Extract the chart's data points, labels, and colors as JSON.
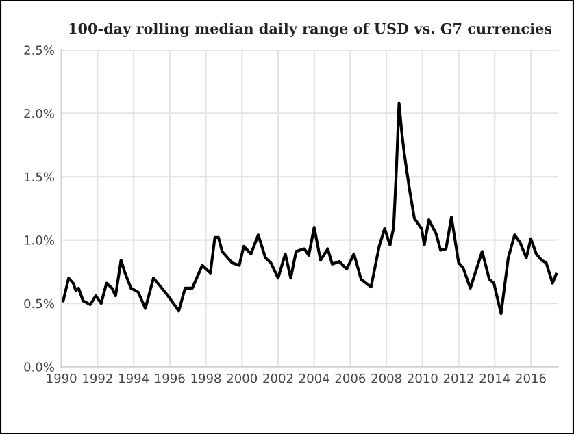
{
  "chart_data": {
    "type": "line",
    "title": "100-day rolling median daily range of USD vs. G7 currencies",
    "x": [
      1990.0,
      1990.1,
      1990.4,
      1990.65,
      1990.8,
      1990.95,
      1991.2,
      1991.6,
      1991.9,
      1992.2,
      1992.5,
      1992.8,
      1993.0,
      1993.3,
      1993.5,
      1993.85,
      1994.25,
      1994.65,
      1995.1,
      1995.45,
      1995.85,
      1996.15,
      1996.5,
      1996.85,
      1997.25,
      1997.8,
      1998.25,
      1998.5,
      1998.7,
      1998.9,
      1999.45,
      1999.85,
      2000.1,
      2000.5,
      2000.9,
      2001.3,
      2001.6,
      2002.0,
      2002.4,
      2002.7,
      2003.0,
      2003.45,
      2003.7,
      2004.0,
      2004.35,
      2004.75,
      2005.0,
      2005.4,
      2005.8,
      2006.2,
      2006.6,
      2007.15,
      2007.6,
      2007.9,
      2008.2,
      2008.4,
      2008.55,
      2008.7,
      2008.85,
      2009.0,
      2009.3,
      2009.55,
      2009.95,
      2010.1,
      2010.35,
      2010.75,
      2011.0,
      2011.3,
      2011.6,
      2012.0,
      2012.25,
      2012.65,
      2013.3,
      2013.7,
      2013.95,
      2014.35,
      2014.75,
      2015.1,
      2015.4,
      2015.75,
      2016.0,
      2016.3,
      2016.6,
      2016.85,
      2017.2,
      2017.4
    ],
    "series": [
      {
        "color": "#000000",
        "values": [
          0.53,
          0.52,
          0.7,
          0.66,
          0.6,
          0.62,
          0.52,
          0.49,
          0.56,
          0.5,
          0.66,
          0.62,
          0.56,
          0.84,
          0.75,
          0.62,
          0.59,
          0.46,
          0.7,
          0.64,
          0.57,
          0.51,
          0.44,
          0.62,
          0.62,
          0.8,
          0.74,
          1.02,
          1.02,
          0.91,
          0.82,
          0.8,
          0.95,
          0.89,
          1.04,
          0.86,
          0.82,
          0.7,
          0.89,
          0.7,
          0.91,
          0.93,
          0.88,
          1.1,
          0.84,
          0.93,
          0.81,
          0.83,
          0.77,
          0.89,
          0.69,
          0.63,
          0.95,
          1.09,
          0.96,
          1.1,
          1.55,
          2.08,
          1.85,
          1.67,
          1.38,
          1.17,
          1.09,
          0.96,
          1.16,
          1.05,
          0.92,
          0.93,
          1.18,
          0.82,
          0.78,
          0.62,
          0.91,
          0.69,
          0.66,
          0.42,
          0.86,
          1.04,
          0.98,
          0.86,
          1.01,
          0.89,
          0.84,
          0.82,
          0.66,
          0.73
        ]
      }
    ],
    "xlim": [
      1990,
      2017.5
    ],
    "xticks": [
      1990,
      1992,
      1994,
      1996,
      1998,
      2000,
      2002,
      2004,
      2006,
      2008,
      2010,
      2012,
      2014,
      2016
    ],
    "ylim": [
      0,
      2.5
    ],
    "yticks": [
      {
        "value": 0,
        "label": "0.0%"
      },
      {
        "value": 0.5,
        "label": "0.5%"
      },
      {
        "value": 1.0,
        "label": "1.0%"
      },
      {
        "value": 1.5,
        "label": "1.5%"
      },
      {
        "value": 2.0,
        "label": "2.0%"
      },
      {
        "value": 2.5,
        "label": "2.5%"
      }
    ],
    "grid": true,
    "line_style": "solid"
  }
}
